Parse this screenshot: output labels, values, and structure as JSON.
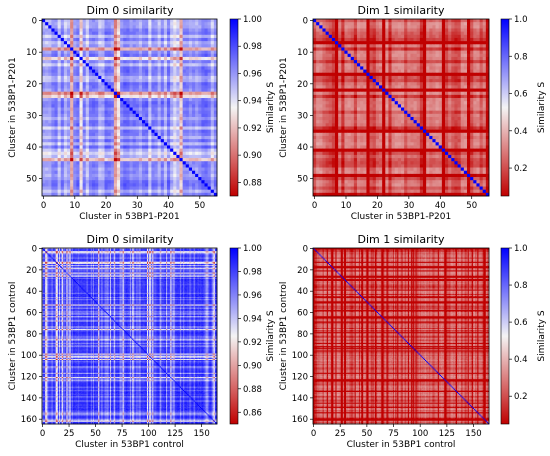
{
  "chart_data": [
    {
      "type": "heatmap",
      "title": "Dim 0 similarity",
      "xlabel": "Cluster in 53BP1-P201",
      "ylabel": "Cluster in 53BP1-P201",
      "n": 56,
      "x_ticks": [
        0,
        10,
        20,
        30,
        40,
        50
      ],
      "y_ticks": [
        0,
        10,
        20,
        30,
        40,
        50
      ],
      "colorbar_label": "Similarity S",
      "colorbar_range": [
        0.87,
        1.0
      ],
      "colorbar_ticks": [
        "0.88",
        "0.90",
        "0.92",
        "0.94",
        "0.96",
        "0.98",
        "1.00"
      ],
      "colorbar_tick_values": [
        0.88,
        0.9,
        0.92,
        0.94,
        0.96,
        0.98,
        1.0
      ],
      "typical_value": 0.97,
      "diagonal_value": 1.0,
      "colormap": [
        "#c00000",
        "#f4f4f4",
        "#0000ff"
      ]
    },
    {
      "type": "heatmap",
      "title": "Dim 1 similarity",
      "xlabel": "Cluster in 53BP1-P201",
      "ylabel": "Cluster in 53BP1-P201",
      "n": 56,
      "x_ticks": [
        0,
        10,
        20,
        30,
        40,
        50
      ],
      "y_ticks": [
        0,
        10,
        20,
        30,
        40,
        50
      ],
      "colorbar_label": "Similarity S",
      "colorbar_range": [
        0.05,
        1.0
      ],
      "colorbar_ticks": [
        "0.2",
        "0.4",
        "0.6",
        "0.8",
        "1.0"
      ],
      "colorbar_tick_values": [
        0.2,
        0.4,
        0.6,
        0.8,
        1.0
      ],
      "typical_value": 0.3,
      "diagonal_value": 1.0,
      "colormap": [
        "#c00000",
        "#f4f4f4",
        "#0000ff"
      ]
    },
    {
      "type": "heatmap",
      "title": "Dim 0 similarity",
      "xlabel": "Cluster in 53BP1 control",
      "ylabel": "Cluster in 53BP1 control",
      "n": 165,
      "x_ticks": [
        0,
        25,
        50,
        75,
        100,
        125,
        150
      ],
      "y_ticks": [
        0,
        20,
        40,
        60,
        80,
        100,
        120,
        140,
        160
      ],
      "colorbar_label": "Similarity S",
      "colorbar_range": [
        0.85,
        1.0
      ],
      "colorbar_ticks": [
        "0.86",
        "0.88",
        "0.90",
        "0.92",
        "0.94",
        "0.96",
        "0.98",
        "1.00"
      ],
      "colorbar_tick_values": [
        0.86,
        0.88,
        0.9,
        0.92,
        0.94,
        0.96,
        0.98,
        1.0
      ],
      "typical_value": 0.985,
      "diagonal_value": 1.0,
      "colormap": [
        "#c00000",
        "#f4f4f4",
        "#0000ff"
      ]
    },
    {
      "type": "heatmap",
      "title": "Dim 1 similarity",
      "xlabel": "Cluster in 53BP1 control",
      "ylabel": "Cluster in 53BP1 control",
      "n": 165,
      "x_ticks": [
        0,
        25,
        50,
        75,
        100,
        125,
        150
      ],
      "y_ticks": [
        0,
        20,
        40,
        60,
        80,
        100,
        120,
        140,
        160
      ],
      "colorbar_label": "Similarity S",
      "colorbar_range": [
        0.05,
        1.0
      ],
      "colorbar_ticks": [
        "0.2",
        "0.4",
        "0.6",
        "0.8",
        "1.0"
      ],
      "colorbar_tick_values": [
        0.2,
        0.4,
        0.6,
        0.8,
        1.0
      ],
      "typical_value": 0.3,
      "diagonal_value": 1.0,
      "colormap": [
        "#c00000",
        "#f4f4f4",
        "#0000ff"
      ]
    }
  ]
}
